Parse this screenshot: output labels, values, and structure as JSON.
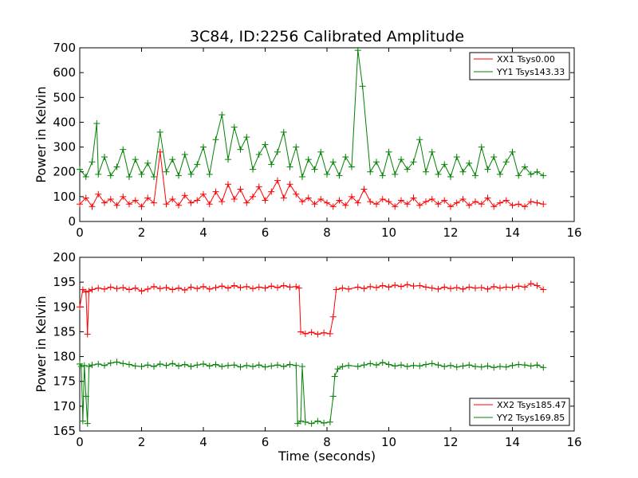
{
  "chart_data": [
    {
      "type": "line",
      "title": "3C84, ID:2256 Calibrated Amplitude",
      "xlabel": "",
      "ylabel": "Power in Kelvin",
      "xlim": [
        0,
        16
      ],
      "ylim": [
        0,
        700
      ],
      "xticks": [
        "0",
        "2",
        "4",
        "6",
        "8",
        "10",
        "12",
        "14",
        "16"
      ],
      "yticks": [
        "0",
        "100",
        "200",
        "300",
        "400",
        "500",
        "600",
        "700"
      ],
      "legend_position": "top-right",
      "grid": false,
      "series": [
        {
          "name": "XX1 Tsys0.00",
          "color": "#ff0000",
          "marker": "plus",
          "x": [
            0.0,
            0.2,
            0.4,
            0.6,
            0.8,
            1.0,
            1.2,
            1.4,
            1.6,
            1.8,
            2.0,
            2.2,
            2.4,
            2.6,
            2.8,
            3.0,
            3.2,
            3.4,
            3.6,
            3.8,
            4.0,
            4.2,
            4.4,
            4.6,
            4.8,
            5.0,
            5.2,
            5.4,
            5.6,
            5.8,
            6.0,
            6.2,
            6.4,
            6.6,
            6.8,
            7.0,
            7.2,
            7.4,
            7.6,
            7.8,
            8.0,
            8.2,
            8.4,
            8.6,
            8.8,
            9.0,
            9.2,
            9.4,
            9.6,
            9.8,
            10.0,
            10.2,
            10.4,
            10.6,
            10.8,
            11.0,
            11.2,
            11.4,
            11.6,
            11.8,
            12.0,
            12.2,
            12.4,
            12.6,
            12.8,
            13.0,
            13.2,
            13.4,
            13.6,
            13.8,
            14.0,
            14.2,
            14.4,
            14.6,
            14.8,
            15.0
          ],
          "y": [
            70,
            95,
            60,
            110,
            75,
            90,
            65,
            100,
            70,
            85,
            60,
            95,
            75,
            280,
            70,
            90,
            65,
            105,
            75,
            85,
            110,
            70,
            120,
            80,
            150,
            90,
            130,
            75,
            100,
            140,
            85,
            120,
            165,
            95,
            150,
            110,
            80,
            95,
            70,
            90,
            75,
            60,
            85,
            65,
            100,
            75,
            130,
            80,
            70,
            90,
            80,
            60,
            85,
            70,
            95,
            65,
            80,
            90,
            70,
            85,
            60,
            75,
            90,
            65,
            80,
            70,
            95,
            60,
            75,
            85,
            65,
            70,
            60,
            80,
            75,
            70
          ]
        },
        {
          "name": "YY1 Tsys143.33",
          "color": "#008000",
          "marker": "plus",
          "x": [
            0.0,
            0.2,
            0.4,
            0.55,
            0.6,
            0.8,
            1.0,
            1.2,
            1.4,
            1.6,
            1.8,
            2.0,
            2.2,
            2.4,
            2.6,
            2.8,
            3.0,
            3.2,
            3.4,
            3.6,
            3.8,
            4.0,
            4.2,
            4.4,
            4.6,
            4.8,
            5.0,
            5.2,
            5.4,
            5.6,
            5.8,
            6.0,
            6.2,
            6.4,
            6.6,
            6.8,
            7.0,
            7.2,
            7.4,
            7.6,
            7.8,
            8.0,
            8.2,
            8.4,
            8.6,
            8.8,
            9.0,
            9.15,
            9.4,
            9.6,
            9.8,
            10.0,
            10.2,
            10.4,
            10.6,
            10.8,
            11.0,
            11.2,
            11.4,
            11.6,
            11.8,
            12.0,
            12.2,
            12.4,
            12.6,
            12.8,
            13.0,
            13.2,
            13.4,
            13.6,
            13.8,
            14.0,
            14.2,
            14.4,
            14.6,
            14.8,
            15.0
          ],
          "y": [
            210,
            180,
            240,
            395,
            190,
            260,
            185,
            220,
            290,
            180,
            250,
            190,
            235,
            180,
            360,
            200,
            250,
            185,
            270,
            190,
            230,
            300,
            190,
            330,
            430,
            250,
            380,
            290,
            340,
            210,
            270,
            310,
            230,
            280,
            360,
            220,
            300,
            180,
            250,
            210,
            280,
            190,
            240,
            185,
            260,
            220,
            690,
            545,
            200,
            240,
            185,
            280,
            190,
            250,
            210,
            240,
            330,
            200,
            280,
            190,
            230,
            180,
            260,
            200,
            235,
            185,
            300,
            210,
            260,
            190,
            240,
            280,
            185,
            220,
            190,
            200,
            185
          ]
        }
      ]
    },
    {
      "type": "line",
      "title": "",
      "xlabel": "Time (seconds)",
      "ylabel": "Power in Kelvin",
      "xlim": [
        0,
        16
      ],
      "ylim": [
        165,
        200
      ],
      "xticks": [
        "0",
        "2",
        "4",
        "6",
        "8",
        "10",
        "12",
        "14",
        "16"
      ],
      "yticks": [
        "165",
        "170",
        "175",
        "180",
        "185",
        "190",
        "195",
        "200"
      ],
      "legend_position": "bottom-right",
      "grid": false,
      "series": [
        {
          "name": "XX2 Tsys185.47",
          "color": "#ff0000",
          "marker": "plus",
          "x": [
            0.0,
            0.1,
            0.2,
            0.25,
            0.3,
            0.4,
            0.6,
            0.8,
            1.0,
            1.2,
            1.4,
            1.6,
            1.8,
            2.0,
            2.2,
            2.4,
            2.6,
            2.8,
            3.0,
            3.2,
            3.4,
            3.6,
            3.8,
            4.0,
            4.2,
            4.4,
            4.6,
            4.8,
            5.0,
            5.2,
            5.4,
            5.6,
            5.8,
            6.0,
            6.2,
            6.4,
            6.6,
            6.8,
            7.0,
            7.1,
            7.15,
            7.3,
            7.5,
            7.7,
            7.9,
            8.1,
            8.2,
            8.3,
            8.5,
            8.7,
            9.0,
            9.2,
            9.4,
            9.6,
            9.8,
            10.0,
            10.2,
            10.4,
            10.6,
            10.8,
            11.0,
            11.2,
            11.4,
            11.6,
            11.8,
            12.0,
            12.2,
            12.4,
            12.6,
            12.8,
            13.0,
            13.2,
            13.4,
            13.6,
            13.8,
            14.0,
            14.2,
            14.4,
            14.6,
            14.8,
            15.0
          ],
          "y": [
            190,
            193.5,
            193,
            184.5,
            193.2,
            193.5,
            193.8,
            193.6,
            194.0,
            193.7,
            193.9,
            193.5,
            193.8,
            193.2,
            193.6,
            194.1,
            193.7,
            193.9,
            193.5,
            193.8,
            193.4,
            194.0,
            193.7,
            194.1,
            193.6,
            193.9,
            194.2,
            193.8,
            194.3,
            193.9,
            194.1,
            193.7,
            194.0,
            193.8,
            194.2,
            193.9,
            194.3,
            194.0,
            194.1,
            193.8,
            185.0,
            184.6,
            184.9,
            184.5,
            184.8,
            184.6,
            188.0,
            193.5,
            193.8,
            193.6,
            194.0,
            193.7,
            194.1,
            193.9,
            194.3,
            194.0,
            194.4,
            194.1,
            194.5,
            194.2,
            194.3,
            194.0,
            193.8,
            193.6,
            194.0,
            193.7,
            193.9,
            193.6,
            194.0,
            193.8,
            193.9,
            193.6,
            194.1,
            193.8,
            194.0,
            193.9,
            194.2,
            194.0,
            194.7,
            194.3,
            193.5
          ]
        },
        {
          "name": "YY2 Tsys169.85",
          "color": "#008000",
          "marker": "plus",
          "x": [
            0.0,
            0.05,
            0.1,
            0.15,
            0.2,
            0.25,
            0.3,
            0.4,
            0.6,
            0.8,
            1.0,
            1.2,
            1.4,
            1.6,
            1.8,
            2.0,
            2.2,
            2.4,
            2.6,
            2.8,
            3.0,
            3.2,
            3.4,
            3.6,
            3.8,
            4.0,
            4.2,
            4.4,
            4.6,
            4.8,
            5.0,
            5.2,
            5.4,
            5.6,
            5.8,
            6.0,
            6.2,
            6.4,
            6.6,
            6.8,
            7.0,
            7.05,
            7.15,
            7.2,
            7.3,
            7.5,
            7.7,
            7.9,
            8.1,
            8.2,
            8.25,
            8.35,
            8.5,
            8.7,
            9.0,
            9.2,
            9.4,
            9.6,
            9.8,
            10.0,
            10.2,
            10.4,
            10.6,
            10.8,
            11.0,
            11.2,
            11.4,
            11.6,
            11.8,
            12.0,
            12.2,
            12.4,
            12.6,
            12.8,
            13.0,
            13.2,
            13.4,
            13.6,
            13.8,
            14.0,
            14.2,
            14.4,
            14.6,
            14.8,
            15.0
          ],
          "y": [
            178.5,
            178.0,
            167.0,
            178.2,
            172.0,
            166.5,
            178.0,
            178.3,
            178.5,
            178.2,
            178.7,
            178.9,
            178.6,
            178.4,
            178.1,
            178.0,
            178.3,
            178.0,
            178.5,
            178.2,
            178.6,
            178.1,
            178.4,
            178.0,
            178.3,
            178.5,
            178.1,
            178.4,
            178.0,
            178.2,
            178.3,
            177.9,
            178.2,
            178.0,
            178.3,
            177.9,
            178.1,
            178.3,
            178.0,
            178.4,
            178.2,
            166.5,
            167.0,
            178.0,
            166.8,
            166.5,
            167.0,
            166.6,
            166.8,
            172.0,
            176.0,
            177.5,
            178.0,
            178.2,
            178.0,
            178.3,
            178.6,
            178.3,
            178.8,
            178.4,
            178.1,
            178.3,
            178.0,
            178.2,
            178.1,
            178.4,
            178.6,
            178.3,
            178.0,
            178.2,
            177.9,
            178.1,
            178.3,
            178.0,
            177.9,
            178.1,
            177.8,
            178.0,
            177.9,
            178.2,
            178.4,
            178.3,
            178.1,
            178.3,
            177.8
          ]
        }
      ]
    }
  ]
}
